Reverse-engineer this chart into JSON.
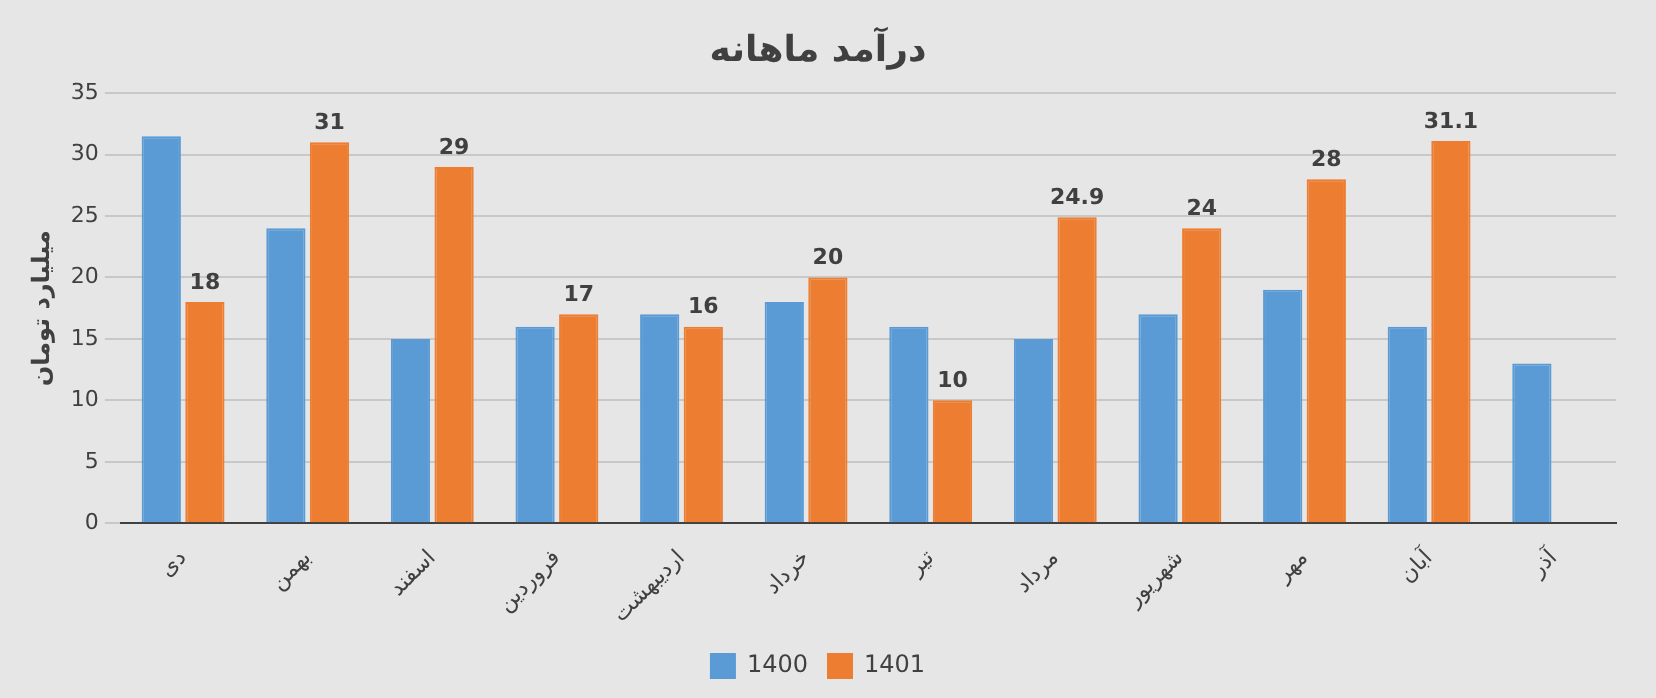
{
  "chart_data": {
    "type": "bar",
    "title": "درآمد ماهانه",
    "ylabel": "میلیارد تومان",
    "categories": [
      "دی",
      "بهمن",
      "اسفند",
      "فروردین",
      "اردیبهشت",
      "خرداد",
      "تیر",
      "مرداد",
      "شهریور",
      "مهر",
      "آبان",
      "آذر"
    ],
    "series": [
      {
        "name": "1400",
        "color": "#5b9bd5",
        "values": [
          31.5,
          24,
          15,
          16,
          17,
          18,
          16,
          15,
          17,
          19,
          16,
          13
        ]
      },
      {
        "name": "1401",
        "color": "#ed7d31",
        "values": [
          18,
          31,
          29,
          17,
          16,
          20,
          10,
          24.9,
          24,
          28,
          31.1,
          null
        ],
        "value_labels": [
          "18",
          "31",
          "29",
          "17",
          "16",
          "20",
          "10",
          "24.9",
          "24",
          "28",
          "31.1",
          null
        ]
      }
    ],
    "ylim": [
      0,
      35
    ],
    "yticks": [
      0,
      5,
      10,
      15,
      20,
      25,
      30,
      35
    ],
    "grid": "y",
    "legend": "bottom"
  }
}
